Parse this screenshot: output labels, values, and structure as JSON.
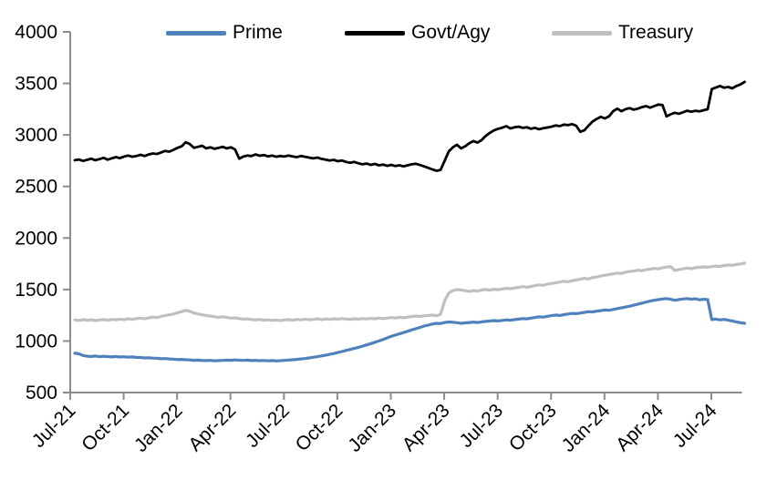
{
  "chart_data": {
    "type": "line",
    "title": "",
    "xlabel": "",
    "ylabel": "",
    "grid": false,
    "legend_position": "top",
    "axis_color": "#8c8c8c",
    "background_color": "#ffffff",
    "points_per_quarter": 13,
    "x_axis": {
      "tick_labels": [
        "Jul-21",
        "Oct-21",
        "Jan-22",
        "Apr-22",
        "Jul-22",
        "Oct-22",
        "Jan-23",
        "Apr-23",
        "Jul-23",
        "Oct-23",
        "Jan-24",
        "Apr-24",
        "Jul-24"
      ],
      "label_rotation_deg": 45
    },
    "y_axis": {
      "min": 500,
      "max": 4000,
      "step": 500,
      "tick_labels": [
        "500",
        "1000",
        "1500",
        "2000",
        "2500",
        "3000",
        "3500",
        "4000"
      ]
    },
    "series": [
      {
        "name": "Prime",
        "color": "#4F81BD",
        "stroke_width": 3.2,
        "values": [
          882,
          876,
          860,
          853,
          850,
          854,
          848,
          852,
          849,
          846,
          850,
          845,
          847,
          843,
          846,
          841,
          840,
          836,
          838,
          834,
          832,
          828,
          830,
          826,
          824,
          820,
          822,
          818,
          816,
          813,
          815,
          811,
          810,
          812,
          808,
          810,
          812,
          815,
          813,
          816,
          814,
          812,
          815,
          810,
          812,
          809,
          811,
          808,
          810,
          807,
          809,
          812,
          815,
          818,
          822,
          826,
          830,
          836,
          842,
          848,
          855,
          862,
          870,
          878,
          888,
          898,
          908,
          918,
          928,
          938,
          950,
          962,
          975,
          988,
          1000,
          1015,
          1030,
          1045,
          1058,
          1070,
          1082,
          1095,
          1108,
          1120,
          1132,
          1145,
          1155,
          1165,
          1172,
          1170,
          1180,
          1185,
          1182,
          1178,
          1172,
          1176,
          1180,
          1184,
          1180,
          1186,
          1190,
          1194,
          1198,
          1195,
          1200,
          1205,
          1202,
          1208,
          1212,
          1218,
          1215,
          1222,
          1228,
          1235,
          1232,
          1240,
          1246,
          1252,
          1248,
          1256,
          1262,
          1268,
          1265,
          1272,
          1278,
          1285,
          1282,
          1290,
          1295,
          1302,
          1298,
          1306,
          1315,
          1322,
          1330,
          1338,
          1348,
          1358,
          1368,
          1378,
          1388,
          1395,
          1402,
          1408,
          1412,
          1405,
          1395,
          1402,
          1408,
          1412,
          1405,
          1410,
          1400,
          1405,
          1402,
          1208,
          1212,
          1205,
          1210,
          1202,
          1195,
          1185,
          1178,
          1172
        ]
      },
      {
        "name": "Govt/Agy",
        "color": "#000000",
        "stroke_width": 2.8,
        "values": [
          2755,
          2762,
          2748,
          2758,
          2770,
          2755,
          2765,
          2778,
          2760,
          2773,
          2785,
          2775,
          2790,
          2800,
          2788,
          2795,
          2808,
          2795,
          2810,
          2820,
          2815,
          2830,
          2845,
          2838,
          2855,
          2875,
          2890,
          2930,
          2910,
          2875,
          2885,
          2895,
          2870,
          2880,
          2865,
          2875,
          2885,
          2870,
          2880,
          2858,
          2770,
          2790,
          2800,
          2795,
          2810,
          2798,
          2805,
          2792,
          2800,
          2788,
          2795,
          2790,
          2800,
          2792,
          2785,
          2795,
          2788,
          2780,
          2772,
          2780,
          2768,
          2760,
          2752,
          2758,
          2745,
          2752,
          2738,
          2730,
          2738,
          2725,
          2715,
          2722,
          2710,
          2718,
          2705,
          2712,
          2700,
          2710,
          2698,
          2705,
          2695,
          2705,
          2715,
          2720,
          2708,
          2695,
          2680,
          2665,
          2652,
          2660,
          2750,
          2840,
          2880,
          2905,
          2870,
          2890,
          2920,
          2940,
          2925,
          2950,
          2990,
          3020,
          3045,
          3060,
          3070,
          3085,
          3062,
          3075,
          3080,
          3068,
          3075,
          3060,
          3068,
          3055,
          3065,
          3072,
          3080,
          3092,
          3085,
          3100,
          3095,
          3105,
          3090,
          3030,
          3045,
          3090,
          3130,
          3155,
          3175,
          3160,
          3180,
          3230,
          3255,
          3230,
          3250,
          3260,
          3245,
          3255,
          3270,
          3280,
          3265,
          3280,
          3295,
          3290,
          3180,
          3200,
          3215,
          3205,
          3220,
          3235,
          3225,
          3235,
          3228,
          3240,
          3250,
          3445,
          3460,
          3475,
          3458,
          3465,
          3452,
          3475,
          3490,
          3515
        ]
      },
      {
        "name": "Treasury",
        "color": "#BFBFBF",
        "stroke_width": 3.2,
        "values": [
          1205,
          1200,
          1208,
          1202,
          1206,
          1198,
          1204,
          1208,
          1202,
          1210,
          1205,
          1212,
          1208,
          1215,
          1210,
          1218,
          1222,
          1216,
          1225,
          1232,
          1228,
          1238,
          1248,
          1255,
          1262,
          1275,
          1285,
          1298,
          1288,
          1272,
          1262,
          1255,
          1248,
          1242,
          1235,
          1230,
          1235,
          1228,
          1222,
          1225,
          1218,
          1212,
          1215,
          1208,
          1205,
          1210,
          1202,
          1206,
          1200,
          1204,
          1198,
          1205,
          1208,
          1202,
          1210,
          1205,
          1212,
          1206,
          1210,
          1215,
          1208,
          1214,
          1210,
          1216,
          1212,
          1218,
          1213,
          1210,
          1216,
          1212,
          1218,
          1214,
          1220,
          1215,
          1222,
          1218,
          1222,
          1228,
          1224,
          1230,
          1226,
          1232,
          1238,
          1242,
          1238,
          1244,
          1248,
          1252,
          1245,
          1260,
          1390,
          1465,
          1490,
          1500,
          1495,
          1488,
          1480,
          1490,
          1485,
          1495,
          1500,
          1494,
          1502,
          1498,
          1505,
          1512,
          1508,
          1515,
          1520,
          1528,
          1522,
          1530,
          1538,
          1545,
          1540,
          1552,
          1558,
          1565,
          1572,
          1580,
          1575,
          1585,
          1592,
          1600,
          1608,
          1602,
          1615,
          1622,
          1630,
          1638,
          1645,
          1652,
          1660,
          1655,
          1668,
          1675,
          1680,
          1688,
          1682,
          1692,
          1698,
          1705,
          1700,
          1712,
          1718,
          1722,
          1685,
          1692,
          1700,
          1708,
          1702,
          1712,
          1715,
          1720,
          1716,
          1722,
          1728,
          1724,
          1732,
          1738,
          1735,
          1742,
          1748,
          1756
        ]
      }
    ]
  }
}
